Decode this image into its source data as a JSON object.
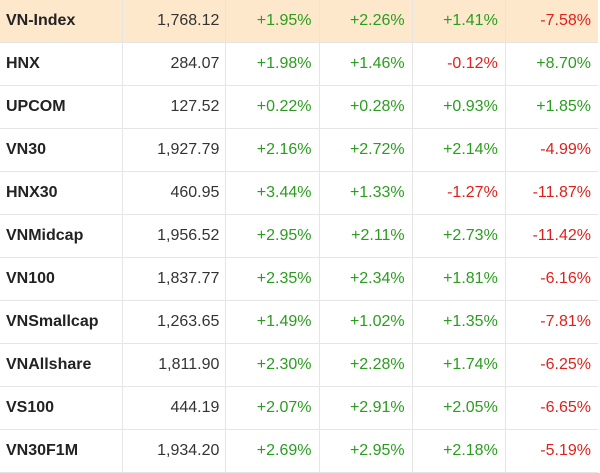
{
  "colors": {
    "positive": "#2a9d1f",
    "negative": "#e0201b",
    "highlight_row": "#fde8cc"
  },
  "rows": [
    {
      "name": "VN-Index",
      "value": "1,768.12",
      "changes": [
        "+1.95%",
        "+2.26%",
        "+1.41%",
        "-7.58%"
      ]
    },
    {
      "name": "HNX",
      "value": "284.07",
      "changes": [
        "+1.98%",
        "+1.46%",
        "-0.12%",
        "+8.70%"
      ]
    },
    {
      "name": "UPCOM",
      "value": "127.52",
      "changes": [
        "+0.22%",
        "+0.28%",
        "+0.93%",
        "+1.85%"
      ]
    },
    {
      "name": "VN30",
      "value": "1,927.79",
      "changes": [
        "+2.16%",
        "+2.72%",
        "+2.14%",
        "-4.99%"
      ]
    },
    {
      "name": "HNX30",
      "value": "460.95",
      "changes": [
        "+3.44%",
        "+1.33%",
        "-1.27%",
        "-11.87%"
      ]
    },
    {
      "name": "VNMidcap",
      "value": "1,956.52",
      "changes": [
        "+2.95%",
        "+2.11%",
        "+2.73%",
        "-11.42%"
      ]
    },
    {
      "name": "VN100",
      "value": "1,837.77",
      "changes": [
        "+2.35%",
        "+2.34%",
        "+1.81%",
        "-6.16%"
      ]
    },
    {
      "name": "VNSmallcap",
      "value": "1,263.65",
      "changes": [
        "+1.49%",
        "+1.02%",
        "+1.35%",
        "-7.81%"
      ]
    },
    {
      "name": "VNAllshare",
      "value": "1,811.90",
      "changes": [
        "+2.30%",
        "+2.28%",
        "+1.74%",
        "-6.25%"
      ]
    },
    {
      "name": "VS100",
      "value": "444.19",
      "changes": [
        "+2.07%",
        "+2.91%",
        "+2.05%",
        "-6.65%"
      ]
    },
    {
      "name": "VN30F1M",
      "value": "1,934.20",
      "changes": [
        "+2.69%",
        "+2.95%",
        "+2.18%",
        "-5.19%"
      ]
    }
  ]
}
